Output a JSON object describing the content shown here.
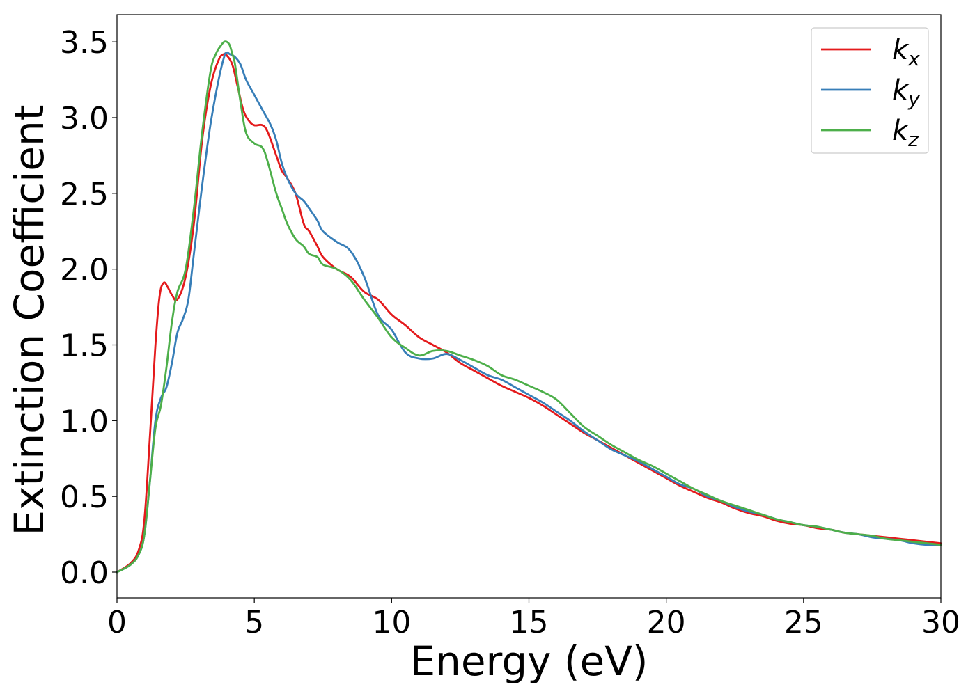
{
  "chart_data": {
    "type": "line",
    "title": "",
    "xlabel": "Energy (eV)",
    "ylabel": "Extinction Coefficient",
    "xlim": [
      0,
      30
    ],
    "ylim": [
      -0.17,
      3.68
    ],
    "xticks": [
      0,
      5,
      10,
      15,
      20,
      25,
      30
    ],
    "xtick_labels": [
      "0",
      "5",
      "10",
      "15",
      "20",
      "25",
      "30"
    ],
    "yticks": [
      0.0,
      0.5,
      1.0,
      1.5,
      2.0,
      2.5,
      3.0,
      3.5
    ],
    "ytick_labels": [
      "0.0",
      "0.5",
      "1.0",
      "1.5",
      "2.0",
      "2.5",
      "3.0",
      "3.5"
    ],
    "grid": false,
    "legend_position": "top-right",
    "series": [
      {
        "name": "k",
        "subscript": "x",
        "color": "#e41a1c",
        "x": [
          0,
          0.5,
          0.8,
          1.0,
          1.2,
          1.4,
          1.55,
          1.7,
          1.85,
          2.0,
          2.2,
          2.5,
          2.8,
          3.1,
          3.4,
          3.7,
          3.9,
          4.0,
          4.2,
          4.4,
          4.6,
          4.8,
          5.0,
          5.3,
          5.5,
          5.8,
          6.0,
          6.2,
          6.5,
          6.8,
          7.0,
          7.3,
          7.5,
          8.0,
          8.5,
          9.0,
          9.5,
          10.0,
          10.5,
          11.0,
          11.5,
          12.0,
          12.5,
          13.0,
          13.5,
          14.0,
          14.5,
          15.0,
          15.5,
          16.0,
          16.5,
          17.0,
          17.5,
          18.0,
          18.5,
          19.0,
          19.5,
          20.0,
          20.5,
          21.0,
          21.5,
          22.0,
          22.5,
          23.0,
          23.5,
          24.0,
          24.5,
          25.0,
          25.5,
          26.0,
          26.5,
          27.0,
          27.5,
          28.0,
          28.5,
          29.0,
          29.5,
          30.0
        ],
        "values": [
          0.0,
          0.06,
          0.15,
          0.35,
          0.9,
          1.5,
          1.82,
          1.91,
          1.88,
          1.83,
          1.8,
          1.95,
          2.3,
          2.85,
          3.2,
          3.38,
          3.42,
          3.41,
          3.35,
          3.2,
          3.05,
          2.98,
          2.95,
          2.95,
          2.9,
          2.75,
          2.65,
          2.6,
          2.5,
          2.3,
          2.25,
          2.15,
          2.08,
          2.0,
          1.95,
          1.85,
          1.8,
          1.7,
          1.63,
          1.55,
          1.5,
          1.45,
          1.38,
          1.33,
          1.28,
          1.23,
          1.19,
          1.15,
          1.1,
          1.04,
          0.98,
          0.92,
          0.87,
          0.82,
          0.77,
          0.72,
          0.67,
          0.62,
          0.57,
          0.53,
          0.49,
          0.46,
          0.42,
          0.39,
          0.37,
          0.34,
          0.32,
          0.31,
          0.29,
          0.28,
          0.26,
          0.25,
          0.24,
          0.23,
          0.22,
          0.21,
          0.2,
          0.19
        ]
      },
      {
        "name": "k",
        "subscript": "y",
        "color": "#377eb8",
        "x": [
          0,
          0.5,
          0.8,
          1.0,
          1.2,
          1.4,
          1.6,
          1.8,
          2.0,
          2.2,
          2.4,
          2.6,
          2.8,
          3.1,
          3.4,
          3.7,
          3.9,
          4.0,
          4.1,
          4.3,
          4.5,
          4.7,
          5.0,
          5.3,
          5.6,
          5.8,
          6.0,
          6.2,
          6.5,
          6.8,
          7.0,
          7.3,
          7.5,
          8.0,
          8.5,
          9.0,
          9.5,
          10.0,
          10.5,
          11.0,
          11.5,
          12.0,
          12.5,
          13.0,
          13.5,
          14.0,
          14.5,
          15.0,
          15.5,
          16.0,
          16.5,
          17.0,
          17.5,
          18.0,
          18.5,
          19.0,
          19.5,
          20.0,
          20.5,
          21.0,
          21.5,
          22.0,
          22.5,
          23.0,
          23.5,
          24.0,
          24.5,
          25.0,
          25.5,
          26.0,
          26.5,
          27.0,
          27.5,
          28.0,
          28.5,
          29.0,
          29.5,
          30.0
        ],
        "values": [
          0.0,
          0.05,
          0.12,
          0.25,
          0.6,
          1.0,
          1.15,
          1.22,
          1.38,
          1.58,
          1.67,
          1.8,
          2.1,
          2.55,
          2.95,
          3.25,
          3.4,
          3.43,
          3.42,
          3.4,
          3.35,
          3.25,
          3.15,
          3.05,
          2.95,
          2.85,
          2.7,
          2.6,
          2.5,
          2.45,
          2.4,
          2.32,
          2.25,
          2.18,
          2.12,
          1.95,
          1.7,
          1.6,
          1.45,
          1.41,
          1.41,
          1.44,
          1.4,
          1.35,
          1.3,
          1.27,
          1.22,
          1.17,
          1.12,
          1.06,
          1.0,
          0.93,
          0.87,
          0.81,
          0.77,
          0.73,
          0.68,
          0.63,
          0.58,
          0.55,
          0.5,
          0.47,
          0.43,
          0.4,
          0.38,
          0.35,
          0.33,
          0.31,
          0.3,
          0.28,
          0.26,
          0.25,
          0.23,
          0.22,
          0.21,
          0.19,
          0.18,
          0.18
        ]
      },
      {
        "name": "k",
        "subscript": "z",
        "color": "#4daf4a",
        "x": [
          0,
          0.5,
          0.8,
          1.0,
          1.2,
          1.4,
          1.6,
          1.8,
          2.0,
          2.2,
          2.5,
          2.8,
          3.1,
          3.4,
          3.6,
          3.8,
          3.9,
          4.0,
          4.1,
          4.2,
          4.3,
          4.5,
          4.7,
          5.0,
          5.3,
          5.5,
          5.8,
          6.0,
          6.2,
          6.5,
          6.8,
          7.0,
          7.3,
          7.5,
          8.0,
          8.5,
          9.0,
          9.5,
          10.0,
          10.5,
          11.0,
          11.5,
          12.0,
          12.5,
          13.0,
          13.5,
          14.0,
          14.5,
          15.0,
          15.5,
          16.0,
          16.5,
          17.0,
          17.5,
          18.0,
          18.5,
          19.0,
          19.5,
          20.0,
          20.5,
          21.0,
          21.5,
          22.0,
          22.5,
          23.0,
          23.5,
          24.0,
          24.5,
          25.0,
          25.5,
          26.0,
          26.5,
          27.0,
          27.5,
          28.0,
          28.5,
          29.0,
          29.5,
          30.0
        ],
        "values": [
          0.0,
          0.05,
          0.12,
          0.25,
          0.6,
          0.95,
          1.1,
          1.35,
          1.65,
          1.85,
          2.0,
          2.4,
          2.9,
          3.3,
          3.42,
          3.48,
          3.5,
          3.5,
          3.48,
          3.42,
          3.35,
          3.1,
          2.9,
          2.83,
          2.8,
          2.7,
          2.5,
          2.4,
          2.3,
          2.2,
          2.15,
          2.1,
          2.08,
          2.03,
          2.0,
          1.93,
          1.8,
          1.68,
          1.55,
          1.48,
          1.43,
          1.46,
          1.46,
          1.43,
          1.4,
          1.36,
          1.3,
          1.27,
          1.23,
          1.19,
          1.14,
          1.05,
          0.96,
          0.9,
          0.84,
          0.79,
          0.74,
          0.7,
          0.65,
          0.6,
          0.55,
          0.51,
          0.47,
          0.44,
          0.41,
          0.38,
          0.35,
          0.33,
          0.31,
          0.3,
          0.28,
          0.26,
          0.25,
          0.24,
          0.22,
          0.21,
          0.2,
          0.19,
          0.18
        ]
      }
    ]
  }
}
